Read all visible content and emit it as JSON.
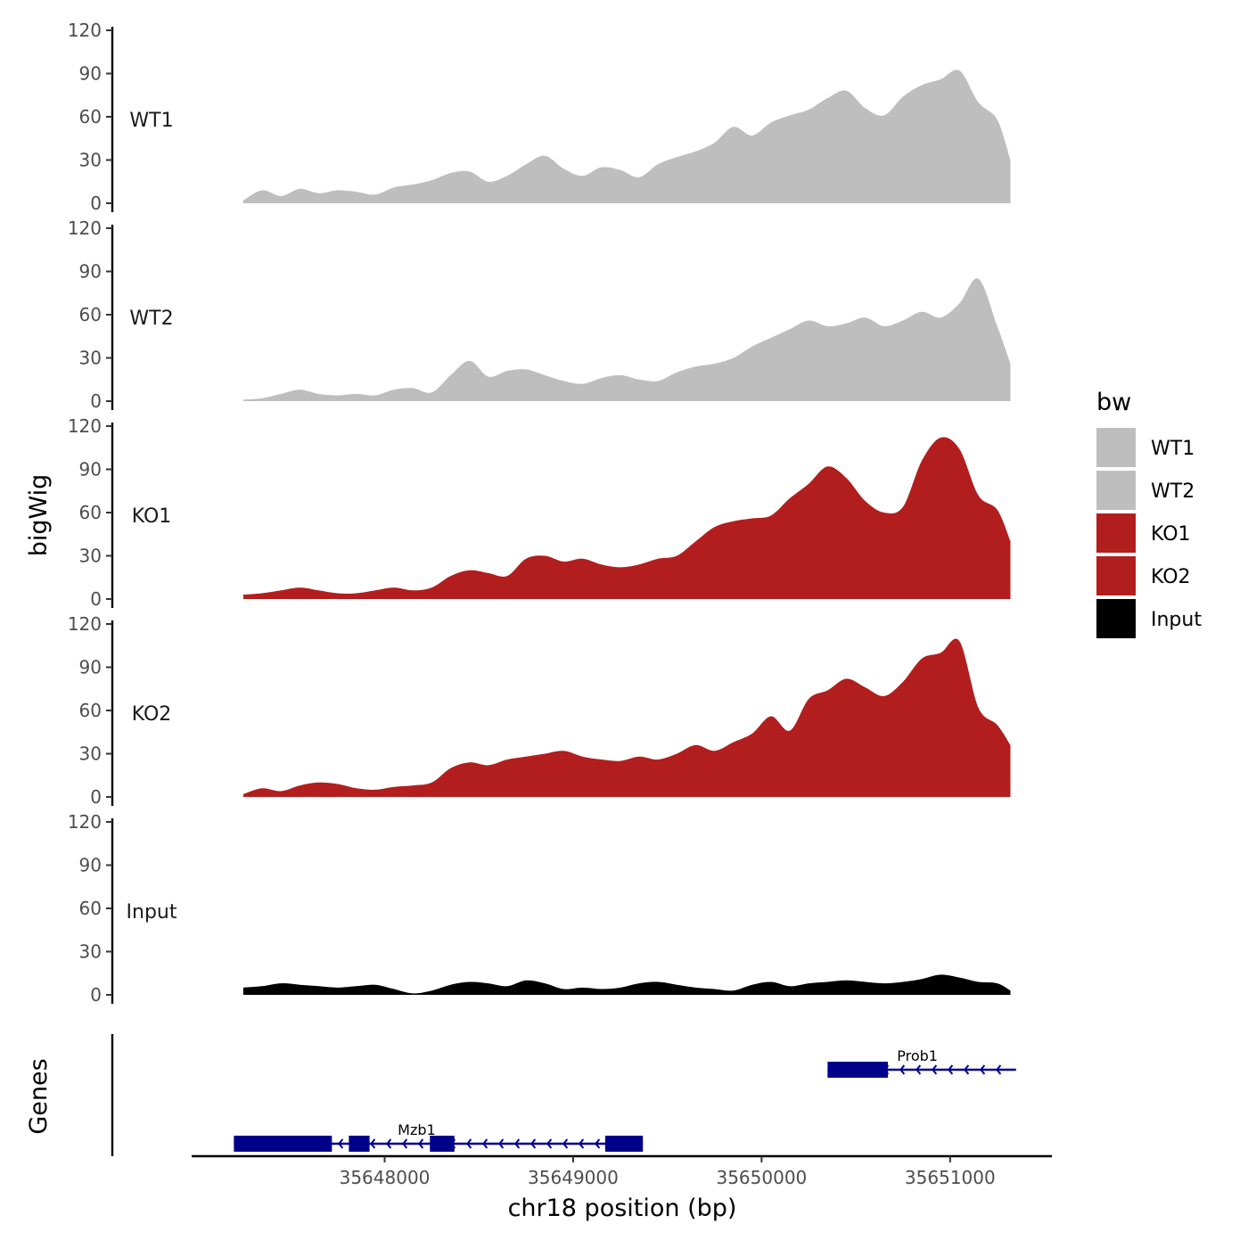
{
  "chart_data": {
    "type": "area",
    "ylabel": "bigWig",
    "xlabel": "chr18 position (bp)",
    "ylim": [
      0,
      120
    ],
    "yticks": [
      "120",
      "90",
      "60",
      "30",
      "0"
    ],
    "xlim": [
      35646976,
      35651540
    ],
    "xticks": [
      {
        "value": 35648000,
        "label": "35648000"
      },
      {
        "value": 35649000,
        "label": "35649000"
      },
      {
        "value": 35650000,
        "label": "35650000"
      },
      {
        "value": 35651000,
        "label": "35651000"
      }
    ],
    "genes_label": "Genes",
    "legend": {
      "title": "bw",
      "items": [
        {
          "label": "WT1",
          "color": "#bebebe"
        },
        {
          "label": "WT2",
          "color": "#bebebe"
        },
        {
          "label": "KO1",
          "color": "#b21e1e"
        },
        {
          "label": "KO2",
          "color": "#b21e1e"
        },
        {
          "label": "Input",
          "color": "#000000"
        }
      ]
    },
    "series": [
      {
        "name": "WT1",
        "color": "#bebebe",
        "x": [
          35647250,
          35647350,
          35647450,
          35647550,
          35647650,
          35647750,
          35647850,
          35647950,
          35648050,
          35648150,
          35648250,
          35648350,
          35648450,
          35648550,
          35648650,
          35648750,
          35648850,
          35648950,
          35649050,
          35649150,
          35649250,
          35649350,
          35649450,
          35649550,
          35649650,
          35649750,
          35649850,
          35649950,
          35650050,
          35650150,
          35650250,
          35650350,
          35650450,
          35650550,
          35650650,
          35650750,
          35650850,
          35650950,
          35651050,
          35651150,
          35651250,
          35651320
        ],
        "values": [
          2,
          9,
          5,
          10,
          7,
          9,
          8,
          6,
          11,
          13,
          16,
          21,
          22,
          15,
          19,
          27,
          33,
          24,
          19,
          25,
          23,
          18,
          27,
          32,
          36,
          42,
          53,
          47,
          56,
          61,
          65,
          73,
          78,
          66,
          61,
          74,
          82,
          86,
          92,
          70,
          58,
          30
        ]
      },
      {
        "name": "WT2",
        "color": "#bebebe",
        "x": [
          35647250,
          35647350,
          35647450,
          35647550,
          35647650,
          35647750,
          35647850,
          35647950,
          35648050,
          35648150,
          35648250,
          35648350,
          35648450,
          35648550,
          35648650,
          35648750,
          35648850,
          35648950,
          35649050,
          35649150,
          35649250,
          35649350,
          35649450,
          35649550,
          35649650,
          35649750,
          35649850,
          35649950,
          35650050,
          35650150,
          35650250,
          35650350,
          35650450,
          35650550,
          35650650,
          35650750,
          35650850,
          35650950,
          35651050,
          35651150,
          35651250,
          35651320
        ],
        "values": [
          1,
          2,
          5,
          8,
          5,
          4,
          5,
          4,
          8,
          9,
          6,
          18,
          28,
          17,
          21,
          22,
          18,
          14,
          12,
          16,
          18,
          15,
          14,
          20,
          24,
          26,
          30,
          38,
          44,
          50,
          56,
          52,
          54,
          58,
          52,
          56,
          62,
          58,
          68,
          85,
          52,
          26
        ]
      },
      {
        "name": "KO1",
        "color": "#b21e1e",
        "x": [
          35647250,
          35647350,
          35647450,
          35647550,
          35647650,
          35647750,
          35647850,
          35647950,
          35648050,
          35648150,
          35648250,
          35648350,
          35648450,
          35648550,
          35648650,
          35648750,
          35648850,
          35648950,
          35649050,
          35649150,
          35649250,
          35649350,
          35649450,
          35649550,
          35649650,
          35649750,
          35649850,
          35649950,
          35650050,
          35650150,
          35650250,
          35650350,
          35650450,
          35650550,
          35650650,
          35650750,
          35650850,
          35650950,
          35651050,
          35651150,
          35651250,
          35651320
        ],
        "values": [
          3,
          4,
          6,
          8,
          6,
          4,
          4,
          6,
          8,
          6,
          8,
          16,
          20,
          18,
          16,
          28,
          30,
          26,
          28,
          24,
          22,
          24,
          28,
          30,
          40,
          50,
          54,
          56,
          58,
          70,
          80,
          92,
          84,
          68,
          60,
          64,
          96,
          112,
          104,
          72,
          62,
          40
        ]
      },
      {
        "name": "KO2",
        "color": "#b21e1e",
        "x": [
          35647250,
          35647350,
          35647450,
          35647550,
          35647650,
          35647750,
          35647850,
          35647950,
          35648050,
          35648150,
          35648250,
          35648350,
          35648450,
          35648550,
          35648650,
          35648750,
          35648850,
          35648950,
          35649050,
          35649150,
          35649250,
          35649350,
          35649450,
          35649550,
          35649650,
          35649750,
          35649850,
          35649950,
          35650050,
          35650150,
          35650250,
          35650350,
          35650450,
          35650550,
          35650650,
          35650750,
          35650850,
          35650950,
          35651050,
          35651150,
          35651250,
          35651320
        ],
        "values": [
          2,
          6,
          4,
          8,
          10,
          9,
          6,
          5,
          7,
          8,
          10,
          20,
          24,
          22,
          26,
          28,
          30,
          32,
          28,
          26,
          25,
          28,
          26,
          30,
          36,
          32,
          38,
          44,
          56,
          46,
          68,
          74,
          82,
          76,
          70,
          80,
          96,
          100,
          108,
          62,
          50,
          36
        ]
      },
      {
        "name": "Input",
        "color": "#000000",
        "x": [
          35647250,
          35647350,
          35647450,
          35647550,
          35647650,
          35647750,
          35647850,
          35647950,
          35648050,
          35648150,
          35648250,
          35648350,
          35648450,
          35648550,
          35648650,
          35648750,
          35648850,
          35648950,
          35649050,
          35649150,
          35649250,
          35649350,
          35649450,
          35649550,
          35649650,
          35649750,
          35649850,
          35649950,
          35650050,
          35650150,
          35650250,
          35650350,
          35650450,
          35650550,
          35650650,
          35650750,
          35650850,
          35650950,
          35651050,
          35651150,
          35651250,
          35651320
        ],
        "values": [
          5,
          6,
          8,
          7,
          6,
          5,
          6,
          7,
          4,
          1,
          3,
          7,
          9,
          8,
          6,
          10,
          8,
          4,
          5,
          4,
          5,
          8,
          9,
          7,
          5,
          4,
          3,
          7,
          9,
          6,
          8,
          9,
          10,
          9,
          8,
          9,
          11,
          14,
          12,
          9,
          8,
          3
        ]
      }
    ],
    "genes": [
      {
        "name": "Prob1",
        "row": 1,
        "strand": "-",
        "start": 35650350,
        "end": 35651350,
        "exons": [
          [
            35650350,
            35650670
          ]
        ]
      },
      {
        "name": "Mzb1",
        "row": 2,
        "strand": "-",
        "start": 35647200,
        "end": 35649370,
        "exons": [
          [
            35647200,
            35647720
          ],
          [
            35647810,
            35647920
          ],
          [
            35648240,
            35648370
          ],
          [
            35649170,
            35649370
          ]
        ]
      }
    ]
  }
}
